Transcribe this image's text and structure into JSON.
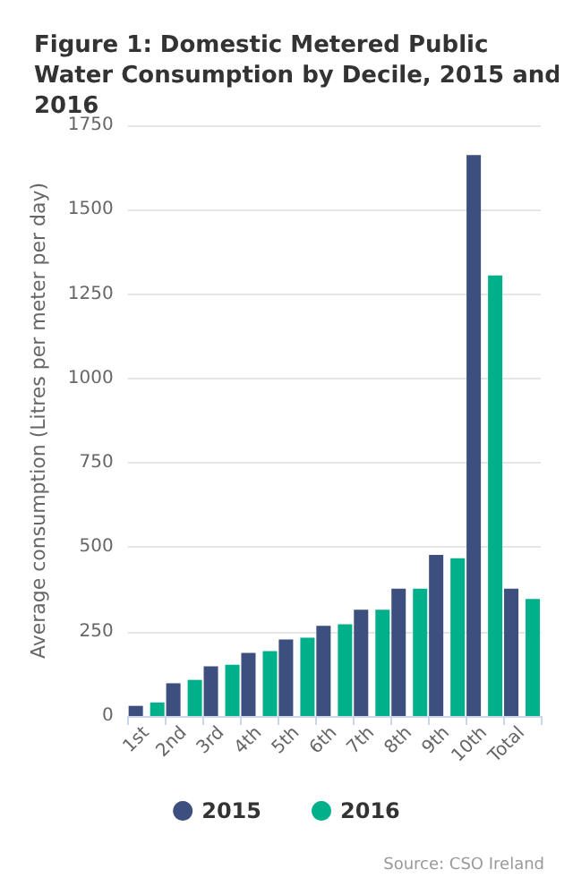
{
  "chart_data": {
    "type": "bar",
    "title": "Figure 1: Domestic Metered Public Water Consumption by Decile, 2015 and 2016",
    "ylabel": "Average consumption (Litres per meter per day)",
    "categories": [
      "1st",
      "2nd",
      "3rd",
      "4th",
      "5th",
      "6th",
      "7th",
      "8th",
      "9th",
      "10th",
      "Total"
    ],
    "series": [
      {
        "name": "2015",
        "color": "#3d4f7f",
        "values": [
          30,
          97,
          147,
          187,
          227,
          267,
          315,
          377,
          477,
          1662,
          377
        ]
      },
      {
        "name": "2016",
        "color": "#00b08a",
        "values": [
          40,
          107,
          152,
          192,
          232,
          272,
          315,
          377,
          467,
          1305,
          347
        ]
      }
    ],
    "ylim": [
      0,
      1750
    ],
    "yticks": [
      0,
      250,
      500,
      750,
      1000,
      1250,
      1500,
      1750
    ],
    "grid": "y",
    "legend": "bottom",
    "annotations": [
      "Source: CSO Ireland"
    ]
  }
}
